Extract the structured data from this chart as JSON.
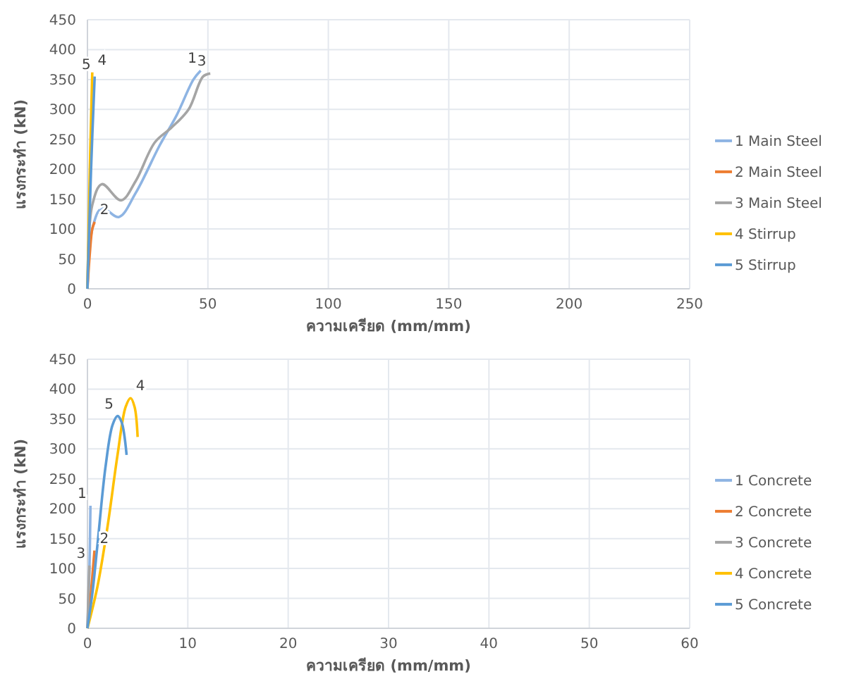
{
  "chart_data": [
    {
      "type": "line",
      "xlabel": "ความเครียด (mm/mm)",
      "ylabel": "แรงกระทำ (kN)",
      "xlim": [
        0,
        250
      ],
      "xticks": [
        0,
        50,
        100,
        150,
        200,
        250
      ],
      "ylim": [
        0,
        450
      ],
      "yticks": [
        0,
        50,
        100,
        150,
        200,
        250,
        300,
        350,
        400,
        450
      ],
      "grid": true,
      "legend": "right",
      "marker": "none",
      "line_style": "solid",
      "series": [
        {
          "name": "1 Main Steel",
          "color": "#8eb4e3",
          "x": [
            0,
            2,
            6,
            13,
            20,
            30,
            37,
            44,
            47
          ],
          "values": [
            0,
            100,
            135,
            120,
            160,
            240,
            290,
            350,
            365
          ]
        },
        {
          "name": "2 Main Steel",
          "color": "#ed7d31",
          "x": [
            0,
            1,
            2,
            3
          ],
          "values": [
            0,
            60,
            100,
            112
          ]
        },
        {
          "name": "3 Main Steel",
          "color": "#a5a5a5",
          "x": [
            0,
            2,
            6,
            14,
            20,
            28,
            35,
            42,
            48,
            51
          ],
          "values": [
            0,
            140,
            175,
            148,
            180,
            245,
            270,
            300,
            355,
            360
          ]
        },
        {
          "name": "4 Stirrup",
          "color": "#ffc000",
          "x": [
            0,
            1,
            2
          ],
          "values": [
            0,
            200,
            362
          ]
        },
        {
          "name": "5 Stirrup",
          "color": "#5b9bd5",
          "x": [
            0,
            1.5,
            3
          ],
          "values": [
            0,
            200,
            355
          ]
        }
      ],
      "annotations": [
        {
          "text": "1",
          "x": 47,
          "y": 365
        },
        {
          "text": "2",
          "x": 3,
          "y": 112
        },
        {
          "text": "3",
          "x": 51,
          "y": 360
        },
        {
          "text": "4",
          "x": 2,
          "y": 362
        },
        {
          "text": "5",
          "x": 3,
          "y": 355
        }
      ]
    },
    {
      "type": "line",
      "xlabel": "ความเครียด (mm/mm)",
      "ylabel": "แรงกระทำ (kN)",
      "xlim": [
        0,
        60
      ],
      "xticks": [
        0,
        10,
        20,
        30,
        40,
        50,
        60
      ],
      "ylim": [
        0,
        450
      ],
      "yticks": [
        0,
        50,
        100,
        150,
        200,
        250,
        300,
        350,
        400,
        450
      ],
      "grid": true,
      "legend": "right",
      "marker": "none",
      "line_style": "solid",
      "series": [
        {
          "name": "1 Concrete",
          "color": "#8eb4e3",
          "x": [
            0,
            0.2,
            0.3
          ],
          "values": [
            0,
            100,
            205
          ]
        },
        {
          "name": "2 Concrete",
          "color": "#ed7d31",
          "x": [
            0,
            0.3,
            0.7
          ],
          "values": [
            0,
            50,
            130
          ]
        },
        {
          "name": "3 Concrete",
          "color": "#a5a5a5",
          "x": [
            0,
            0.1,
            0.2
          ],
          "values": [
            0,
            60,
            105
          ]
        },
        {
          "name": "4 Concrete",
          "color": "#ffc000",
          "x": [
            0,
            1,
            2,
            3,
            3.8,
            4.3,
            4.7,
            5
          ],
          "values": [
            0,
            70,
            170,
            290,
            370,
            385,
            370,
            320
          ]
        },
        {
          "name": "5 Concrete",
          "color": "#5b9bd5",
          "x": [
            0,
            0.5,
            1,
            1.8,
            2.5,
            3,
            3.4,
            3.9
          ],
          "values": [
            0,
            60,
            140,
            270,
            340,
            355,
            345,
            290
          ]
        }
      ],
      "annotations": [
        {
          "text": "1",
          "x": 0.3,
          "y": 205
        },
        {
          "text": "2",
          "x": 0.7,
          "y": 130
        },
        {
          "text": "3",
          "x": 0.2,
          "y": 105
        },
        {
          "text": "4",
          "x": 4.3,
          "y": 385
        },
        {
          "text": "5",
          "x": 3,
          "y": 355
        }
      ]
    }
  ]
}
